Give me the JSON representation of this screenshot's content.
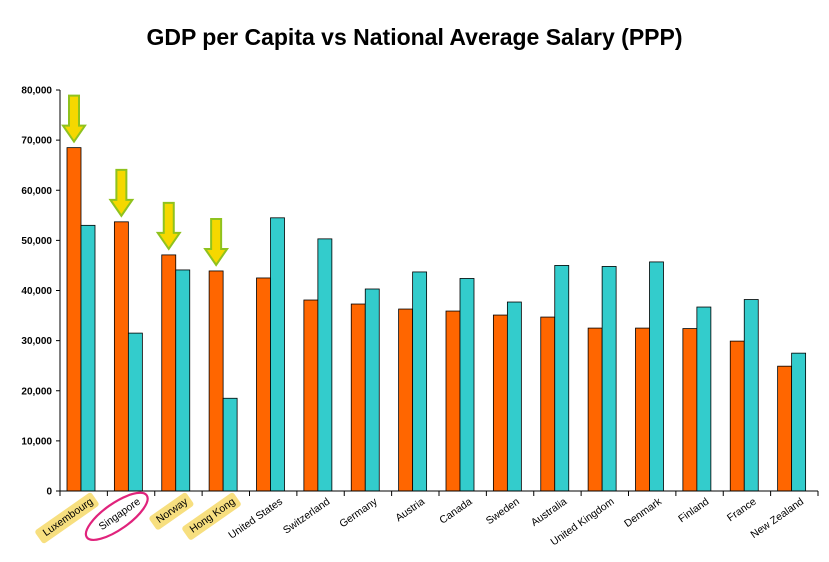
{
  "chart_data": {
    "type": "bar",
    "title": "GDP per Capita vs National Average Salary (PPP)",
    "xlabel": "",
    "ylabel": "",
    "ylim": [
      0,
      80000
    ],
    "y_ticks": [
      "0",
      "10,000",
      "20,000",
      "30,000",
      "40,000",
      "50,000",
      "60,000",
      "70,000",
      "80,000"
    ],
    "y_tick_values": [
      0,
      10000,
      20000,
      30000,
      40000,
      50000,
      60000,
      70000,
      80000
    ],
    "grid": false,
    "legend": "none",
    "categories": [
      "Luxembourg",
      "Singapore",
      "Norway",
      "Hong Kong",
      "United States",
      "Switzerland",
      "Germany",
      "Austria",
      "Canada",
      "Sweden",
      "Australia",
      "United Kingdom",
      "Denmark",
      "Finland",
      "France",
      "New Zealand"
    ],
    "series": [
      {
        "color": "#ff6600",
        "values": [
          68500,
          53700,
          47100,
          43900,
          42500,
          38100,
          37300,
          36300,
          35900,
          35100,
          34700,
          32500,
          32500,
          32400,
          29900,
          24900
        ]
      },
      {
        "color": "#33cccc",
        "values": [
          53000,
          31500,
          44100,
          18500,
          54500,
          50300,
          40300,
          43700,
          42400,
          37700,
          45000,
          44800,
          45700,
          36700,
          38200,
          27500
        ]
      }
    ],
    "highlighted_categories": [
      "Luxembourg",
      "Norway",
      "Hong Kong"
    ],
    "circled_category": "Singapore",
    "arrow_categories": [
      "Luxembourg",
      "Singapore",
      "Norway",
      "Hong Kong"
    ]
  },
  "colors": {
    "highlight": "#f7df7f",
    "circle": "#e0237c",
    "arrow_fill": "#f5d800",
    "arrow_stroke": "#8fc21e"
  }
}
